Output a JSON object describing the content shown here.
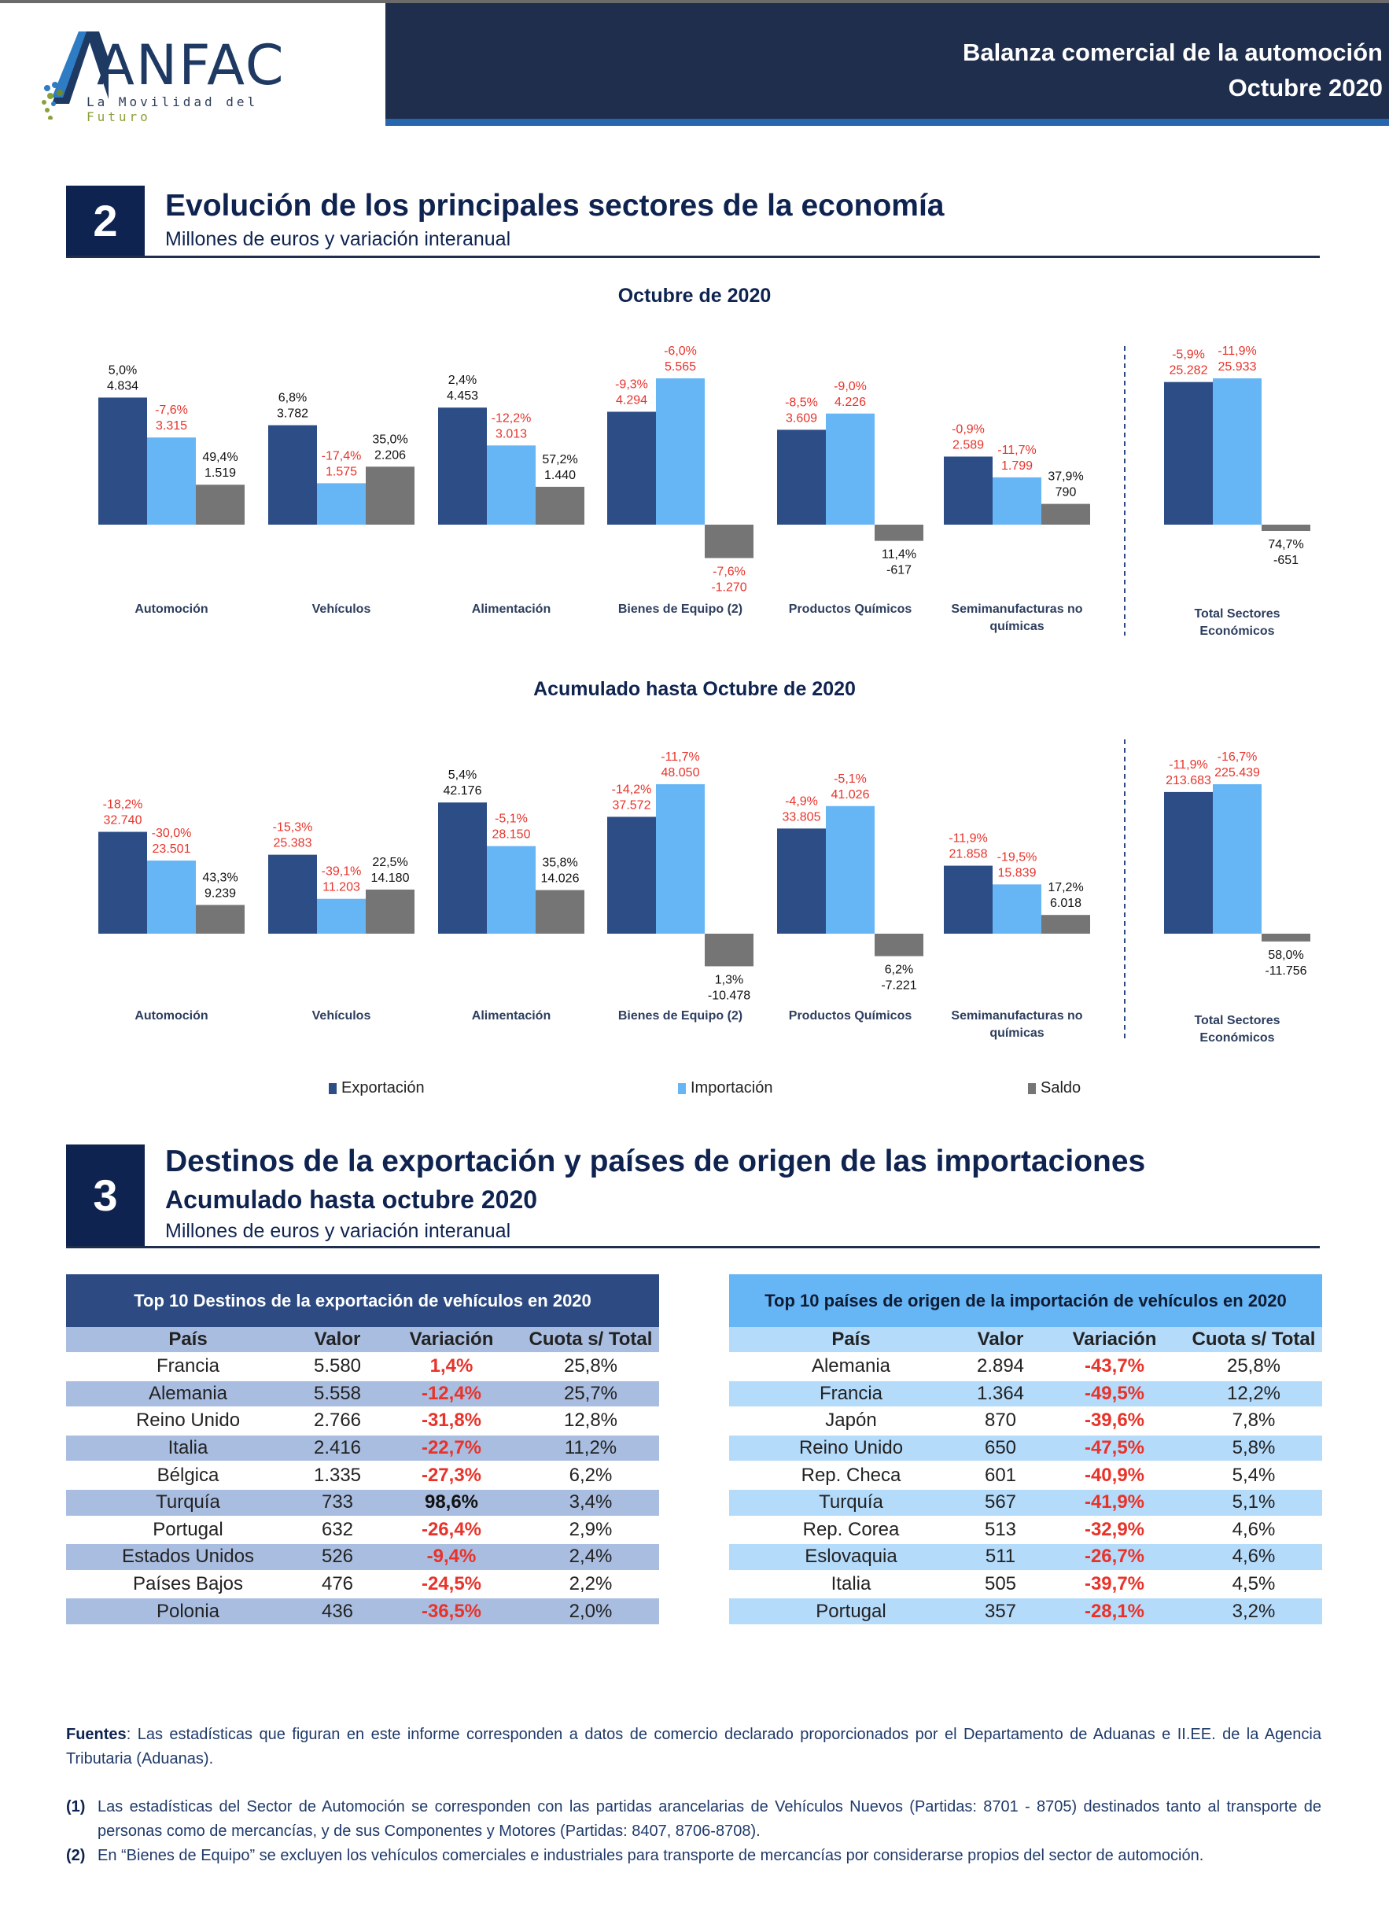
{
  "header": {
    "logo_name": "ANFAC",
    "logo_tagline_a": "La Movilidad del ",
    "logo_tagline_b": "Futuro",
    "title_line1": "Balanza comercial de la automoción",
    "title_line2": "Octubre 2020"
  },
  "section2": {
    "number": "2",
    "title": "Evolución de los principales sectores de la economía",
    "subtitle": "Millones de euros y variación interanual"
  },
  "legend": {
    "items": [
      {
        "label": "Exportación",
        "color": "#2c4d86"
      },
      {
        "label": "Importación",
        "color": "#66b5f5"
      },
      {
        "label": "Saldo",
        "color": "#757575"
      }
    ]
  },
  "colors": {
    "export": "#2c4d86",
    "import": "#66b5f5",
    "balance": "#757575",
    "negative_text": "#e8332a",
    "positive_text": "#111111",
    "category_text": "#2d3e5e"
  },
  "chart_data": [
    {
      "type": "bar",
      "title": "Octubre de 2020",
      "categories": [
        "Automoción",
        "Vehículos",
        "Alimentación",
        "Bienes de Equipo (2)",
        "Productos Químicos",
        "Semimanufacturas no químicas",
        "Total Sectores Económicos"
      ],
      "separate_axis_last_category": true,
      "series": [
        {
          "name": "Exportación",
          "values": [
            4834,
            3782,
            4453,
            4294,
            3609,
            2589,
            25282
          ],
          "labels": [
            "4.834",
            "3.782",
            "4.453",
            "4.294",
            "3.609",
            "2.589",
            "25.282"
          ],
          "variation": [
            "5,0%",
            "6,8%",
            "2,4%",
            "-9,3%",
            "-8,5%",
            "-0,9%",
            "-5,9%"
          ]
        },
        {
          "name": "Importación",
          "values": [
            3315,
            1575,
            3013,
            5565,
            4226,
            1799,
            25933
          ],
          "labels": [
            "3.315",
            "1.575",
            "3.013",
            "5.565",
            "4.226",
            "1.799",
            "25.933"
          ],
          "variation": [
            "-7,6%",
            "-17,4%",
            "-12,2%",
            "-6,0%",
            "-9,0%",
            "-11,7%",
            "-11,9%"
          ]
        },
        {
          "name": "Saldo",
          "values": [
            1519,
            2206,
            1440,
            -1270,
            -617,
            790,
            -651
          ],
          "labels": [
            "1.519",
            "2.206",
            "1.440",
            "-1.270",
            "-617",
            "790",
            "-651"
          ],
          "variation": [
            "49,4%",
            "35,0%",
            "57,2%",
            "-7,6%",
            "11,4%",
            "37,9%",
            "74,7%"
          ]
        }
      ]
    },
    {
      "type": "bar",
      "title": "Acumulado hasta Octubre de 2020",
      "categories": [
        "Automoción",
        "Vehículos",
        "Alimentación",
        "Bienes de Equipo (2)",
        "Productos Químicos",
        "Semimanufacturas no químicas",
        "Total Sectores Económicos"
      ],
      "separate_axis_last_category": true,
      "series": [
        {
          "name": "Exportación",
          "values": [
            32740,
            25383,
            42176,
            37572,
            33805,
            21858,
            213683
          ],
          "labels": [
            "32.740",
            "25.383",
            "42.176",
            "37.572",
            "33.805",
            "21.858",
            "213.683"
          ],
          "variation": [
            "-18,2%",
            "-15,3%",
            "5,4%",
            "-14,2%",
            "-4,9%",
            "-11,9%",
            "-11,9%"
          ]
        },
        {
          "name": "Importación",
          "values": [
            23501,
            11203,
            28150,
            48050,
            41026,
            15839,
            225439
          ],
          "labels": [
            "23.501",
            "11.203",
            "28.150",
            "48.050",
            "41.026",
            "15.839",
            "225.439"
          ],
          "variation": [
            "-30,0%",
            "-39,1%",
            "-5,1%",
            "-11,7%",
            "-5,1%",
            "-19,5%",
            "-16,7%"
          ]
        },
        {
          "name": "Saldo",
          "values": [
            9239,
            14180,
            14026,
            -10478,
            -7221,
            6018,
            -11756
          ],
          "labels": [
            "9.239",
            "14.180",
            "14.026",
            "-10.478",
            "-7.221",
            "6.018",
            "-11.756"
          ],
          "variation": [
            "43,3%",
            "22,5%",
            "35,8%",
            "1,3%",
            "6,2%",
            "17,2%",
            "58,0%"
          ]
        }
      ]
    }
  ],
  "section3": {
    "number": "3",
    "title": "Destinos de la exportación y países de origen de las importaciones",
    "subtitle_bold": "Acumulado hasta octubre 2020",
    "subtitle": "Millones de euros y variación interanual"
  },
  "export_table": {
    "title": "Top 10 Destinos de la exportación de vehículos en 2020",
    "columns": [
      "País",
      "Valor",
      "Variación",
      "Cuota s/ Total"
    ],
    "rows": [
      {
        "country": "Francia",
        "value": "5.580",
        "variation": "1,4%",
        "share": "25,8%",
        "negative": true
      },
      {
        "country": "Alemania",
        "value": "5.558",
        "variation": "-12,4%",
        "share": "25,7%",
        "negative": true
      },
      {
        "country": "Reino Unido",
        "value": "2.766",
        "variation": "-31,8%",
        "share": "12,8%",
        "negative": true
      },
      {
        "country": "Italia",
        "value": "2.416",
        "variation": "-22,7%",
        "share": "11,2%",
        "negative": true
      },
      {
        "country": "Bélgica",
        "value": "1.335",
        "variation": "-27,3%",
        "share": "6,2%",
        "negative": true
      },
      {
        "country": "Turquía",
        "value": "733",
        "variation": "98,6%",
        "share": "3,4%",
        "negative": false
      },
      {
        "country": "Portugal",
        "value": "632",
        "variation": "-26,4%",
        "share": "2,9%",
        "negative": true
      },
      {
        "country": "Estados Unidos",
        "value": "526",
        "variation": "-9,4%",
        "share": "2,4%",
        "negative": true
      },
      {
        "country": "Países Bajos",
        "value": "476",
        "variation": "-24,5%",
        "share": "2,2%",
        "negative": true
      },
      {
        "country": "Polonia",
        "value": "436",
        "variation": "-36,5%",
        "share": "2,0%",
        "negative": true
      }
    ]
  },
  "import_table": {
    "title": "Top 10 países de origen de la importación de vehículos en 2020",
    "columns": [
      "País",
      "Valor",
      "Variación",
      "Cuota s/ Total"
    ],
    "rows": [
      {
        "country": "Alemania",
        "value": "2.894",
        "variation": "-43,7%",
        "share": "25,8%",
        "negative": true
      },
      {
        "country": "Francia",
        "value": "1.364",
        "variation": "-49,5%",
        "share": "12,2%",
        "negative": true
      },
      {
        "country": "Japón",
        "value": "870",
        "variation": "-39,6%",
        "share": "7,8%",
        "negative": true
      },
      {
        "country": "Reino Unido",
        "value": "650",
        "variation": "-47,5%",
        "share": "5,8%",
        "negative": true
      },
      {
        "country": "Rep. Checa",
        "value": "601",
        "variation": "-40,9%",
        "share": "5,4%",
        "negative": true
      },
      {
        "country": "Turquía",
        "value": "567",
        "variation": "-41,9%",
        "share": "5,1%",
        "negative": true
      },
      {
        "country": "Rep. Corea",
        "value": "513",
        "variation": "-32,9%",
        "share": "4,6%",
        "negative": true
      },
      {
        "country": "Eslovaquia",
        "value": "511",
        "variation": "-26,7%",
        "share": "4,6%",
        "negative": true
      },
      {
        "country": "Italia",
        "value": "505",
        "variation": "-39,7%",
        "share": "4,5%",
        "negative": true
      },
      {
        "country": "Portugal",
        "value": "357",
        "variation": "-28,1%",
        "share": "3,2%",
        "negative": true
      }
    ]
  },
  "footnotes": {
    "sources_label": "Fuentes",
    "sources_text": ": Las estadísticas que figuran en este informe corresponden a datos de comercio declarado proporcionados por el Departamento de Aduanas e II.EE. de la Agencia Tributaria (Aduanas).",
    "note1_mark": "(1)",
    "note1_text": "Las estadísticas del Sector de Automoción se corresponden con las partidas arancelarias de Vehículos Nuevos (Partidas: 8701 - 8705) destinados tanto al transporte de personas como de mercancías, y de sus Componentes y Motores (Partidas: 8407, 8706-8708).",
    "note2_mark": "(2)",
    "note2_text": "En “Bienes de Equipo” se excluyen los vehículos comerciales e industriales para transporte de mercancías por considerarse propios del sector de automoción."
  }
}
